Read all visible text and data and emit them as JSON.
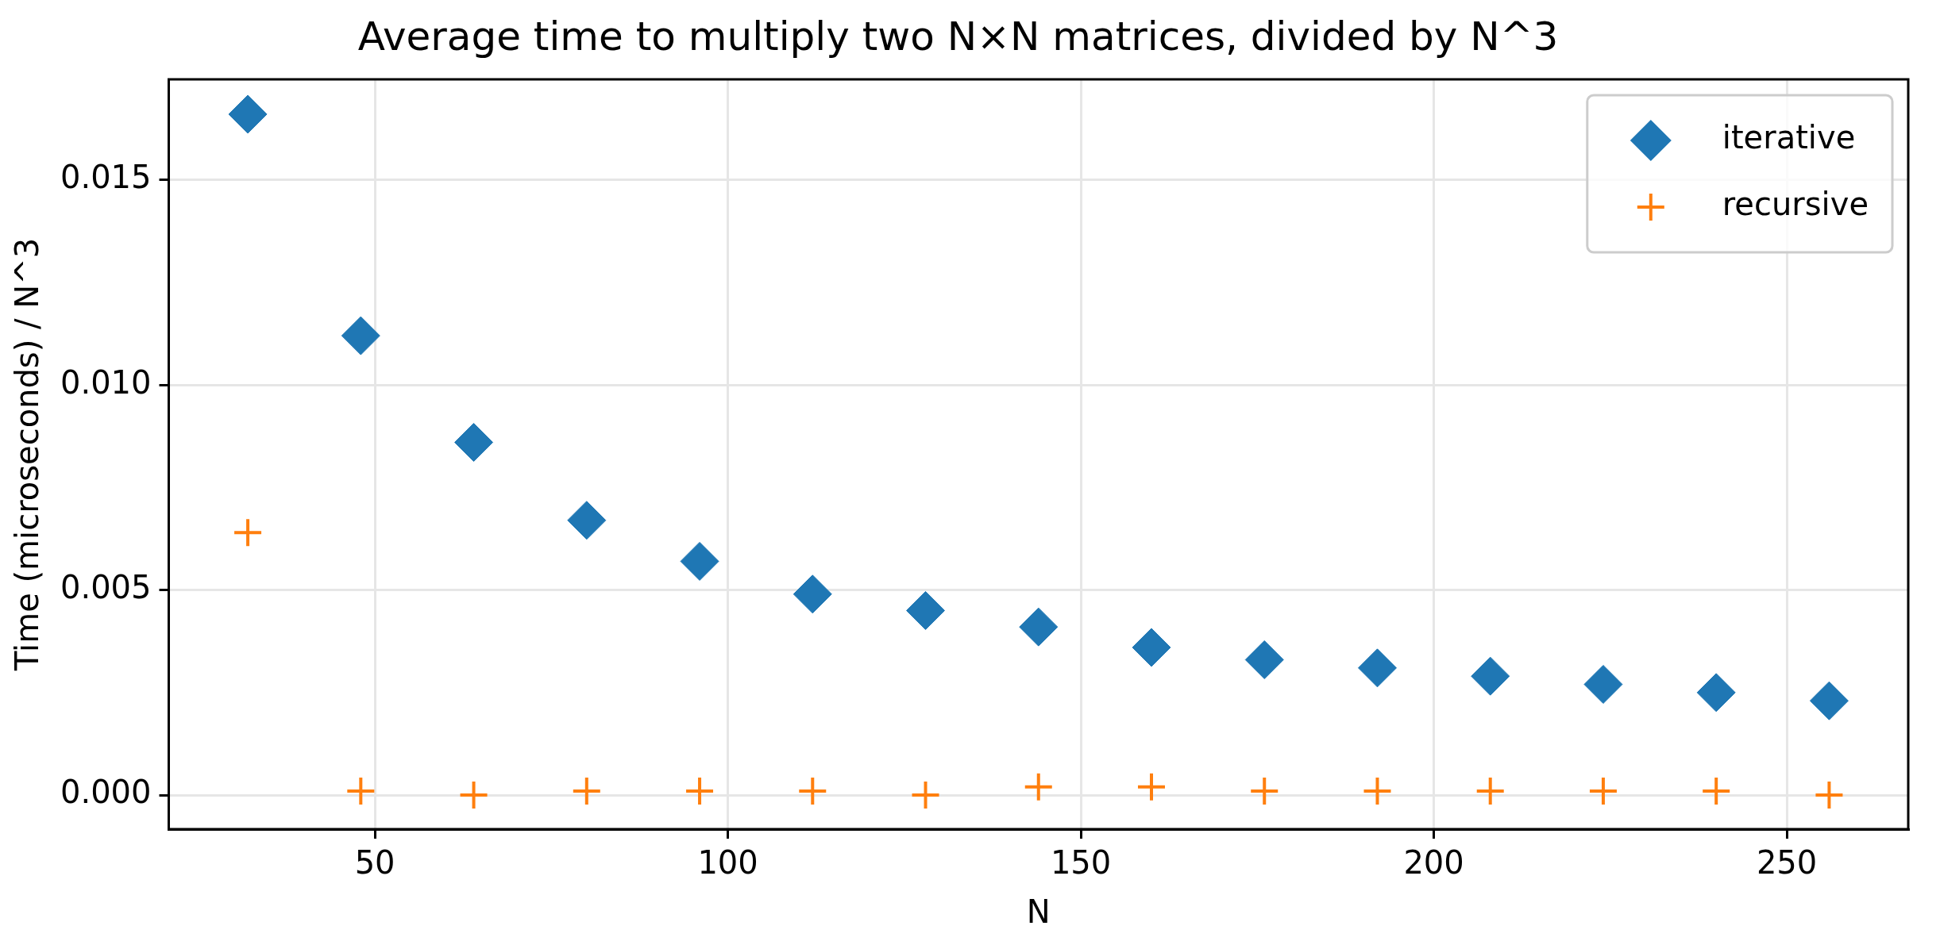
{
  "chart_data": {
    "type": "scatter",
    "title": "Average time to multiply two N×N matrices, divided by N^3",
    "xlabel": "N",
    "ylabel": "Time (microseconds) / N^3",
    "x": [
      32,
      48,
      64,
      80,
      96,
      112,
      128,
      144,
      160,
      176,
      192,
      208,
      224,
      240,
      256
    ],
    "series": [
      {
        "name": "iterative",
        "color": "#1f77b4",
        "marker": "diamond",
        "values": [
          0.0166,
          0.0112,
          0.0086,
          0.0067,
          0.0057,
          0.0049,
          0.0045,
          0.0041,
          0.0036,
          0.0033,
          0.0031,
          0.0029,
          0.0027,
          0.0025,
          0.0023
        ]
      },
      {
        "name": "recursive",
        "color": "#ff7f0e",
        "marker": "cross",
        "values": [
          0.0064,
          0.0001,
          0.0,
          0.0001,
          0.0001,
          0.0001,
          0.0,
          0.0002,
          0.0002,
          0.0001,
          0.0001,
          0.0001,
          0.0001,
          0.0001,
          0.0
        ]
      }
    ],
    "xlim": [
      20.8,
      267.2
    ],
    "xticks": [
      50,
      100,
      150,
      200,
      250
    ],
    "ylim": [
      -0.00083,
      0.01745
    ],
    "yticks": [
      {
        "value": 0,
        "label": "0.000"
      },
      {
        "value": 0.005,
        "label": "0.005"
      },
      {
        "value": 0.01,
        "label": "0.010"
      },
      {
        "value": 0.015,
        "label": "0.015"
      }
    ],
    "grid": true,
    "legend": "top right"
  }
}
